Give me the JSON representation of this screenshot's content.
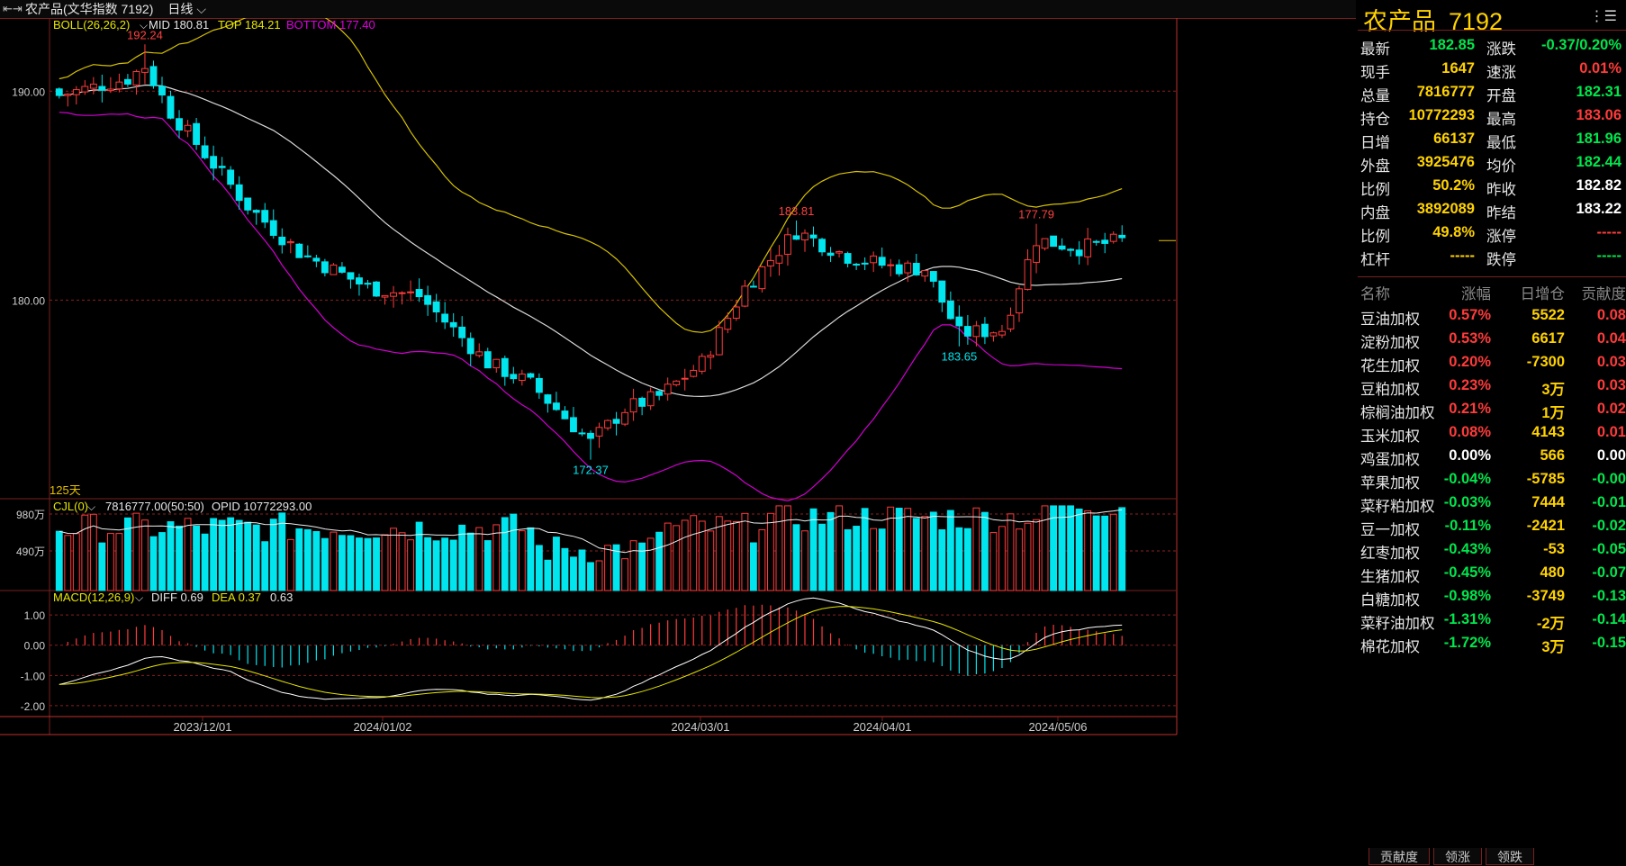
{
  "header": {
    "back_icon": "back-arrow-icon",
    "title": "农产品(文华指数 7192)",
    "period": "日线"
  },
  "colors": {
    "up": "#ff3b3b",
    "down": "#00e5ee",
    "mid": "#d8d8d8",
    "top": "#d6c100",
    "bottom": "#d000d0",
    "diff": "#ffffff",
    "dea": "#e6e600"
  },
  "main_panel": {
    "indicator": "BOLL(26,26,2)",
    "mid_label": "MID 180.81",
    "top_label": "TOP 184.21",
    "bottom_label": "BOTTOM 177.40",
    "y_ticks": [
      "190.00",
      "180.00"
    ],
    "days_label": "125天",
    "annotations": [
      "192.24",
      "172.37",
      "183.81",
      "183.65",
      "177.79"
    ]
  },
  "volume_panel": {
    "indicator": "CJL(0)",
    "values": "7816777.00(50:50)",
    "opid": "OPID 10772293.00",
    "y_ticks": [
      "980万",
      "490万"
    ]
  },
  "macd_panel": {
    "indicator": "MACD(12,26,9)",
    "diff": "DIFF 0.69",
    "dea": "DEA 0.37",
    "macd": "0.63",
    "y_ticks": [
      "1.00",
      "0.00",
      "-1.00",
      "-2.00"
    ]
  },
  "x_dates": [
    "2023/12/01",
    "2024/01/02",
    "2024/03/01",
    "2024/04/01",
    "2024/05/06"
  ],
  "quote": {
    "name": "农产品",
    "code": "7192",
    "rows": [
      {
        "l1": "最新",
        "v1": "182.85",
        "c1": "green",
        "l2": "涨跌",
        "v2": "-0.37/0.20%",
        "c2": "green"
      },
      {
        "l1": "现手",
        "v1": "1647",
        "c1": "yellow",
        "l2": "速涨",
        "v2": "0.01%",
        "c2": "red"
      },
      {
        "l1": "总量",
        "v1": "7816777",
        "c1": "yellow",
        "l2": "开盘",
        "v2": "182.31",
        "c2": "green"
      },
      {
        "l1": "持仓",
        "v1": "10772293",
        "c1": "yellow",
        "l2": "最高",
        "v2": "183.06",
        "c2": "red"
      },
      {
        "l1": "日增",
        "v1": "66137",
        "c1": "yellow",
        "l2": "最低",
        "v2": "181.96",
        "c2": "green"
      },
      {
        "l1": "外盘",
        "v1": "3925476",
        "c1": "yellow",
        "l2": "均价",
        "v2": "182.44",
        "c2": "green"
      },
      {
        "l1": "比例",
        "v1": "50.2%",
        "c1": "yellow",
        "l2": "昨收",
        "v2": "182.82",
        "c2": "white"
      },
      {
        "l1": "内盘",
        "v1": "3892089",
        "c1": "yellow",
        "l2": "昨结",
        "v2": "183.22",
        "c2": "white"
      },
      {
        "l1": "比例",
        "v1": "49.8%",
        "c1": "yellow",
        "l2": "涨停",
        "v2": "-----",
        "c2": "red"
      },
      {
        "l1": "杠杆",
        "v1": "-----",
        "c1": "yellow",
        "l2": "跌停",
        "v2": "-----",
        "c2": "green"
      }
    ]
  },
  "list": {
    "headers": [
      "名称",
      "涨幅",
      "日增仓",
      "贡献度"
    ],
    "rows": [
      {
        "name": "豆油加权",
        "chg": "0.57%",
        "inc": "5522",
        "con": "0.08",
        "c": "red"
      },
      {
        "name": "淀粉加权",
        "chg": "0.53%",
        "inc": "6617",
        "con": "0.04",
        "c": "red"
      },
      {
        "name": "花生加权",
        "chg": "0.20%",
        "inc": "-7300",
        "con": "0.03",
        "c": "red"
      },
      {
        "name": "豆粕加权",
        "chg": "0.23%",
        "inc": "3万",
        "con": "0.03",
        "c": "red"
      },
      {
        "name": "棕榈油加权",
        "chg": "0.21%",
        "inc": "1万",
        "con": "0.02",
        "c": "red"
      },
      {
        "name": "玉米加权",
        "chg": "0.08%",
        "inc": "4143",
        "con": "0.01",
        "c": "red"
      },
      {
        "name": "鸡蛋加权",
        "chg": "0.00%",
        "inc": "566",
        "con": "0.00",
        "c": "white"
      },
      {
        "name": "苹果加权",
        "chg": "-0.04%",
        "inc": "-5785",
        "con": "-0.00",
        "c": "green"
      },
      {
        "name": "菜籽粕加权",
        "chg": "-0.03%",
        "inc": "7444",
        "con": "-0.01",
        "c": "green"
      },
      {
        "name": "豆一加权",
        "chg": "-0.11%",
        "inc": "-2421",
        "con": "-0.02",
        "c": "green"
      },
      {
        "name": "红枣加权",
        "chg": "-0.43%",
        "inc": "-53",
        "con": "-0.05",
        "c": "green"
      },
      {
        "name": "生猪加权",
        "chg": "-0.45%",
        "inc": "480",
        "con": "-0.07",
        "c": "green"
      },
      {
        "name": "白糖加权",
        "chg": "-0.98%",
        "inc": "-3749",
        "con": "-0.13",
        "c": "green"
      },
      {
        "name": "菜籽油加权",
        "chg": "-1.31%",
        "inc": "-2万",
        "con": "-0.14",
        "c": "green"
      },
      {
        "name": "棉花加权",
        "chg": "-1.72%",
        "inc": "3万",
        "con": "-0.15",
        "c": "green"
      }
    ]
  },
  "tabs": [
    "贡献度",
    "领涨",
    "领跌"
  ],
  "chart_data": {
    "type": "candlestick",
    "series_note": "approximate daily bars read from chart",
    "y_range": [
      170.5,
      193.5
    ],
    "count": 125,
    "key_points": [
      {
        "i": 10,
        "value": 192.24
      },
      {
        "i": 62,
        "value": 172.37
      },
      {
        "i": 86,
        "value": 183.81
      },
      {
        "i": 105,
        "value": 177.79
      },
      {
        "i": 114,
        "value": 183.65
      },
      {
        "i": 124,
        "value": 182.85
      }
    ]
  }
}
